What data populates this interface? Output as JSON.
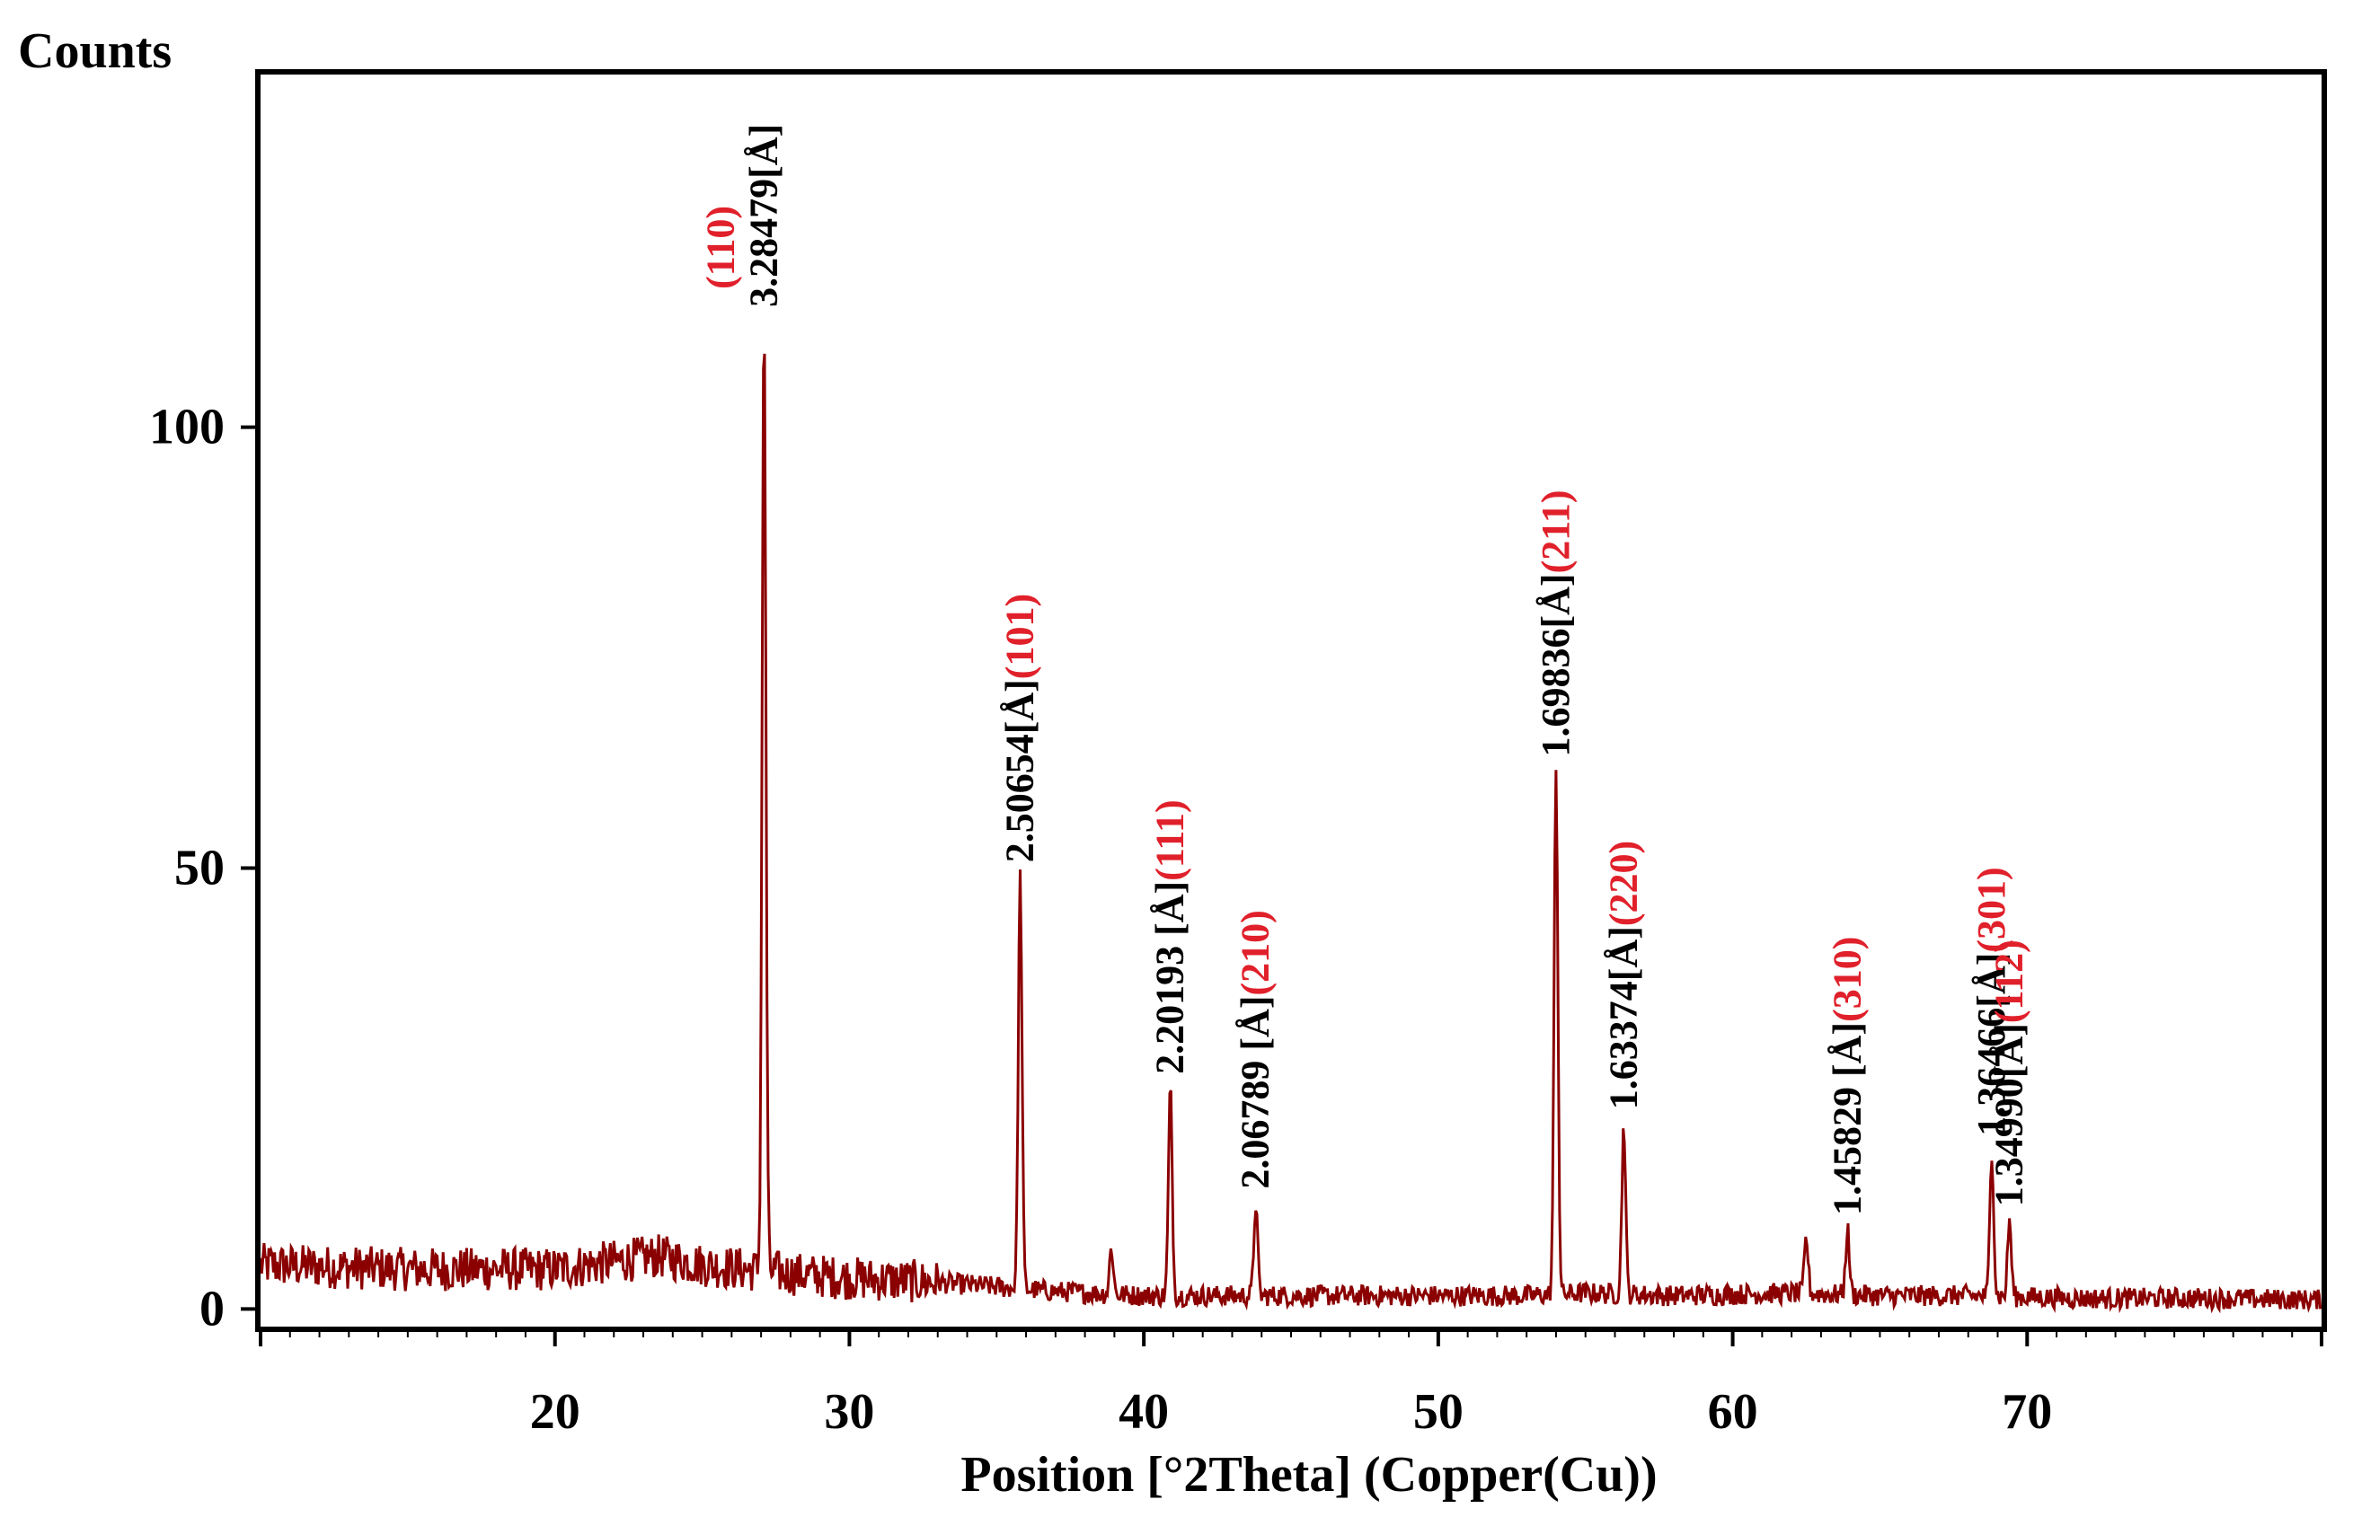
{
  "chart_data": {
    "type": "line",
    "title": "",
    "ylabel": "Counts",
    "xlabel": "Position [°2Theta] (Copper(Cu))",
    "xlim": [
      10,
      80
    ],
    "ylim": [
      -2,
      140
    ],
    "xticks": [
      20,
      30,
      40,
      50,
      60,
      70
    ],
    "yticks": [
      0,
      50,
      100
    ],
    "grid": false,
    "legend": "none",
    "line_color": "#8b0000",
    "label_colors": {
      "d_spacing": "#000000",
      "hkl": "#e0202a"
    },
    "baseline": {
      "x": [
        10,
        15,
        20,
        23.5,
        25,
        26.5,
        28,
        30,
        33,
        35,
        37,
        40,
        45,
        50,
        53,
        55,
        58,
        62,
        65,
        68,
        72,
        76,
        80
      ],
      "y": [
        5,
        4.5,
        4.5,
        6,
        5,
        4.5,
        4,
        3.5,
        3,
        2.5,
        2,
        1.5,
        1.5,
        1.5,
        1.5,
        1.8,
        1.5,
        1.8,
        1.5,
        1.5,
        1.2,
        1.2,
        1
      ]
    },
    "peaks": [
      {
        "x": 27.1,
        "y": 112,
        "d_spacing": "3.28479[Å]",
        "hkl": "(110)"
      },
      {
        "x": 35.8,
        "y": 49,
        "d_spacing": "2.50654[Å]",
        "hkl": "(101)"
      },
      {
        "x": 40.9,
        "y": 25,
        "d_spacing": "2.20193 [Å]",
        "hkl": "(111)"
      },
      {
        "x": 43.8,
        "y": 12,
        "d_spacing": "2.06789 [Å]",
        "hkl": "(210)"
      },
      {
        "x": 54.0,
        "y": 61,
        "d_spacing": "1.69836[Å]",
        "hkl": "(211)"
      },
      {
        "x": 56.3,
        "y": 21,
        "d_spacing": "1.63374[Å]",
        "hkl": "(220)"
      },
      {
        "x": 63.9,
        "y": 9,
        "d_spacing": "1.45829 [Å]",
        "hkl": "(310)"
      },
      {
        "x": 68.8,
        "y": 18,
        "d_spacing": "1.36466[Å]",
        "hkl": "(301)"
      },
      {
        "x": 69.4,
        "y": 10,
        "d_spacing": "1.34990[Å]",
        "hkl": "(112)"
      }
    ],
    "minor_peaks": [
      {
        "x": 38.9,
        "y": 7
      },
      {
        "x": 62.5,
        "y": 8
      }
    ]
  }
}
